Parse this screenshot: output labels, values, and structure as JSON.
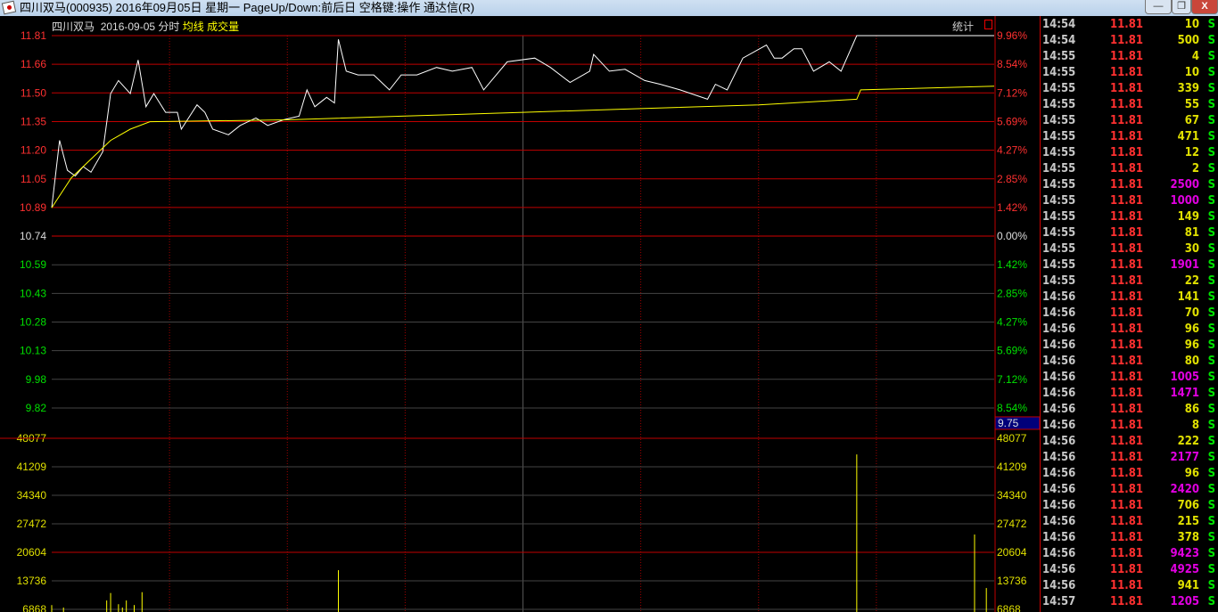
{
  "window": {
    "title": "四川双马(000935) 2016年09月05日 星期一 PageUp/Down:前后日 空格键:操作 通达信(R)",
    "minimize": "—",
    "restore": "❐",
    "close": "X"
  },
  "header": {
    "stock": "四川双马",
    "date": "2016-09-05",
    "mode": "分时",
    "avg_label": "均线",
    "vol_label": "成交量",
    "stats": "统计"
  },
  "colors": {
    "price_line": "#ffffff",
    "avg_line": "#ffff00",
    "grid": "#c00000",
    "up": "#ff3030",
    "down": "#00e000",
    "vol": "#ffff00",
    "big_vol": "#e000e0"
  },
  "cursor_value": "9.75",
  "chart_data": [
    {
      "type": "line",
      "title": "",
      "price_axis": [
        "11.81",
        "11.66",
        "11.50",
        "11.35",
        "11.20",
        "11.05",
        "10.89",
        "10.74",
        "10.59",
        "10.43",
        "10.28",
        "10.13",
        "9.98",
        "9.82"
      ],
      "pct_axis": [
        "9.96%",
        "8.54%",
        "7.12%",
        "5.69%",
        "4.27%",
        "2.85%",
        "1.42%",
        "0.00%",
        "1.42%",
        "2.85%",
        "4.27%",
        "5.69%",
        "7.12%",
        "8.54%"
      ],
      "ylim": [
        9.82,
        11.81
      ],
      "prev_close": 10.74,
      "xlim": [
        0,
        240
      ],
      "series": [
        {
          "name": "",
          "x": [
            0,
            2,
            4,
            6,
            8,
            10,
            13,
            15,
            17,
            20,
            22,
            24,
            26,
            29,
            32,
            33,
            37,
            39,
            41,
            45,
            48,
            52,
            55,
            59,
            63,
            65,
            67,
            70,
            72,
            73,
            75,
            78,
            82,
            86,
            89,
            93,
            98,
            102,
            107,
            110,
            116,
            123,
            127,
            132,
            137,
            138,
            142,
            146,
            151,
            155,
            160,
            167,
            169,
            172,
            176,
            182,
            184,
            186,
            189,
            191,
            194,
            198,
            201,
            205,
            230,
            240
          ],
          "y": [
            10.89,
            11.25,
            11.09,
            11.06,
            11.11,
            11.08,
            11.19,
            11.5,
            11.57,
            11.5,
            11.68,
            11.43,
            11.5,
            11.4,
            11.4,
            11.31,
            11.44,
            11.4,
            11.31,
            11.28,
            11.33,
            11.37,
            11.33,
            11.36,
            11.38,
            11.52,
            11.43,
            11.48,
            11.45,
            11.79,
            11.62,
            11.6,
            11.6,
            11.52,
            11.6,
            11.6,
            11.64,
            11.62,
            11.64,
            11.52,
            11.67,
            11.69,
            11.64,
            11.56,
            11.62,
            11.71,
            11.62,
            11.63,
            11.57,
            11.55,
            11.52,
            11.47,
            11.55,
            11.52,
            11.69,
            11.76,
            11.69,
            11.69,
            11.74,
            11.74,
            11.62,
            11.67,
            11.62,
            11.81,
            11.81,
            11.81
          ]
        },
        {
          "name": "均线",
          "x": [
            0,
            5,
            10,
            15,
            20,
            25,
            60,
            90,
            120,
            150,
            180,
            205,
            206,
            240
          ],
          "y": [
            10.89,
            11.05,
            11.15,
            11.25,
            11.31,
            11.35,
            11.36,
            11.38,
            11.4,
            11.42,
            11.44,
            11.47,
            11.52,
            11.54
          ]
        }
      ]
    },
    {
      "type": "bar",
      "title": "成交量",
      "vol_axis": [
        "48077",
        "41209",
        "34340",
        "27472",
        "20604",
        "13736",
        "6868"
      ],
      "ylim": [
        0,
        48077
      ],
      "x": [
        0,
        3,
        14,
        15,
        17,
        18,
        19,
        21,
        23,
        73,
        205,
        235,
        238
      ],
      "values": [
        7900,
        7300,
        9000,
        10800,
        8100,
        7300,
        9000,
        7900,
        11000,
        16300,
        44200,
        24900,
        12000
      ]
    }
  ],
  "ticks": [
    {
      "t": "14:54",
      "p": "11.81",
      "v": "10"
    },
    {
      "t": "14:54",
      "p": "11.81",
      "v": "500"
    },
    {
      "t": "14:55",
      "p": "11.81",
      "v": "4"
    },
    {
      "t": "14:55",
      "p": "11.81",
      "v": "10"
    },
    {
      "t": "14:55",
      "p": "11.81",
      "v": "339"
    },
    {
      "t": "14:55",
      "p": "11.81",
      "v": "55"
    },
    {
      "t": "14:55",
      "p": "11.81",
      "v": "67"
    },
    {
      "t": "14:55",
      "p": "11.81",
      "v": "471"
    },
    {
      "t": "14:55",
      "p": "11.81",
      "v": "12"
    },
    {
      "t": "14:55",
      "p": "11.81",
      "v": "2"
    },
    {
      "t": "14:55",
      "p": "11.81",
      "v": "2500"
    },
    {
      "t": "14:55",
      "p": "11.81",
      "v": "1000"
    },
    {
      "t": "14:55",
      "p": "11.81",
      "v": "149"
    },
    {
      "t": "14:55",
      "p": "11.81",
      "v": "81"
    },
    {
      "t": "14:55",
      "p": "11.81",
      "v": "30"
    },
    {
      "t": "14:55",
      "p": "11.81",
      "v": "1901"
    },
    {
      "t": "14:55",
      "p": "11.81",
      "v": "22"
    },
    {
      "t": "14:56",
      "p": "11.81",
      "v": "141"
    },
    {
      "t": "14:56",
      "p": "11.81",
      "v": "70"
    },
    {
      "t": "14:56",
      "p": "11.81",
      "v": "96"
    },
    {
      "t": "14:56",
      "p": "11.81",
      "v": "96"
    },
    {
      "t": "14:56",
      "p": "11.81",
      "v": "80"
    },
    {
      "t": "14:56",
      "p": "11.81",
      "v": "1005"
    },
    {
      "t": "14:56",
      "p": "11.81",
      "v": "1471"
    },
    {
      "t": "14:56",
      "p": "11.81",
      "v": "86"
    },
    {
      "t": "14:56",
      "p": "11.81",
      "v": "8"
    },
    {
      "t": "14:56",
      "p": "11.81",
      "v": "222"
    },
    {
      "t": "14:56",
      "p": "11.81",
      "v": "2177"
    },
    {
      "t": "14:56",
      "p": "11.81",
      "v": "96"
    },
    {
      "t": "14:56",
      "p": "11.81",
      "v": "2420"
    },
    {
      "t": "14:56",
      "p": "11.81",
      "v": "706"
    },
    {
      "t": "14:56",
      "p": "11.81",
      "v": "215"
    },
    {
      "t": "14:56",
      "p": "11.81",
      "v": "378"
    },
    {
      "t": "14:56",
      "p": "11.81",
      "v": "9423"
    },
    {
      "t": "14:56",
      "p": "11.81",
      "v": "4925"
    },
    {
      "t": "14:56",
      "p": "11.81",
      "v": "941"
    },
    {
      "t": "14:57",
      "p": "11.81",
      "v": "1205"
    }
  ],
  "tick_side": "S"
}
